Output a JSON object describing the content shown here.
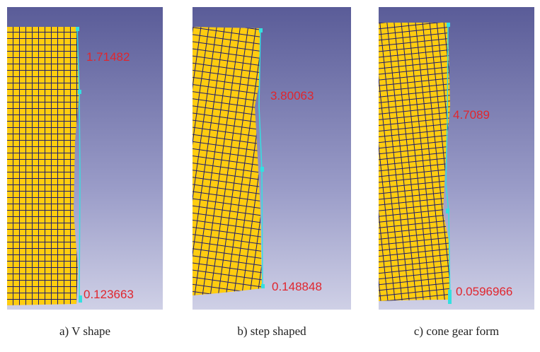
{
  "panels": [
    {
      "measurements": [
        "1.71482",
        "0.123663"
      ],
      "caption": "a) V shape"
    },
    {
      "measurements": [
        "3.80063",
        "0.148848"
      ],
      "caption": "b) step shaped"
    },
    {
      "measurements": [
        "4.7089",
        "0.0596966"
      ],
      "caption": "c) cone gear form"
    }
  ]
}
